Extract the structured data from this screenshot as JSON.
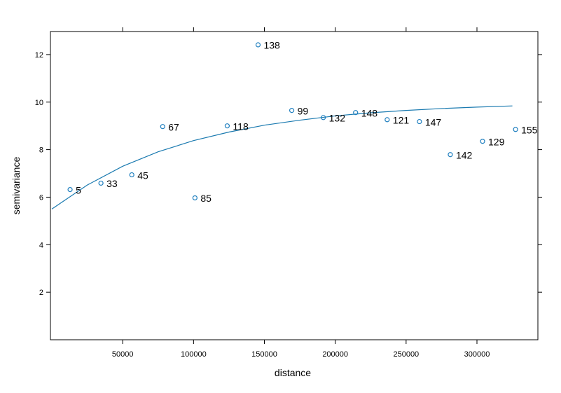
{
  "chart_data": {
    "type": "scatter",
    "xlabel": "distance",
    "ylabel": "semivariance",
    "xlim": [
      -1000,
      343000
    ],
    "ylim": [
      0,
      12.97
    ],
    "xticks": [
      50000,
      100000,
      150000,
      200000,
      250000,
      300000
    ],
    "yticks": [
      2,
      4,
      6,
      8,
      10,
      12
    ],
    "color": "#1f7fbf",
    "x": [
      12871,
      34653,
      56436,
      78218,
      100990,
      123762,
      145545,
      169307,
      191584,
      214356,
      236634,
      259406,
      281188,
      303960,
      327228
    ],
    "values": [
      6.32,
      6.59,
      6.94,
      8.97,
      5.97,
      9.0,
      12.41,
      9.65,
      9.35,
      9.56,
      9.26,
      9.18,
      7.79,
      8.35,
      8.85
    ],
    "labels": [
      "5",
      "33",
      "45",
      "67",
      "85",
      "118",
      "138",
      "99",
      "132",
      "148",
      "121",
      "147",
      "142",
      "129",
      "155"
    ],
    "fit": {
      "color": "#1a7ab0",
      "x": [
        0,
        25000,
        50000,
        75000,
        100000,
        125000,
        150000,
        175000,
        200000,
        225000,
        250000,
        275000,
        300000,
        325000
      ],
      "values": [
        5.5,
        6.51,
        7.3,
        7.91,
        8.38,
        8.74,
        9.03,
        9.24,
        9.42,
        9.55,
        9.65,
        9.73,
        9.79,
        9.84
      ]
    }
  }
}
